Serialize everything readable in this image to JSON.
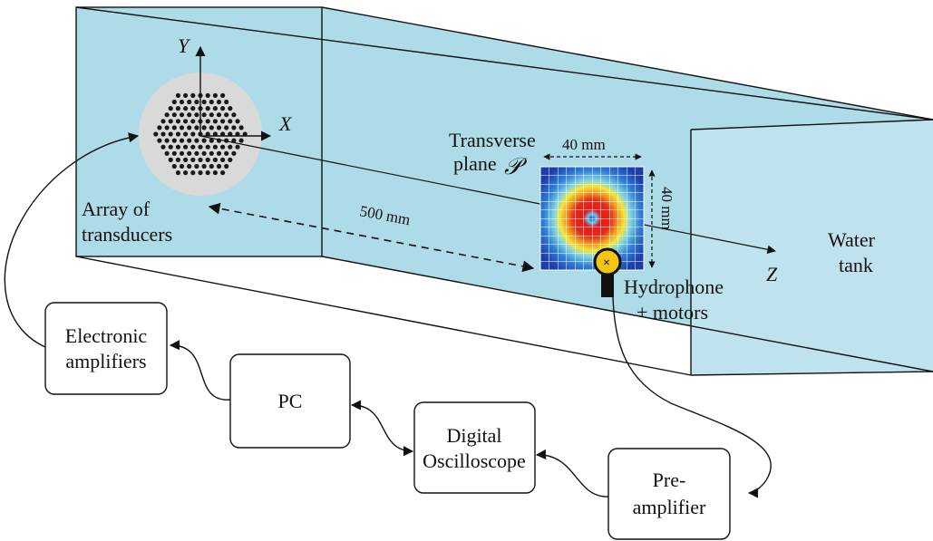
{
  "colors": {
    "water": "#bfe3ee",
    "water_back": "#aedbe8",
    "array_disc": "#d9d9d9",
    "dots": "#1a1a1a",
    "hydrophone": "#f5c40f"
  },
  "labels": {
    "axis_y": "Y",
    "axis_x": "X",
    "axis_z": "Z",
    "array_line1": "Array of",
    "array_line2": "transducers",
    "transverse_line1": "Transverse",
    "transverse_line2": "plane",
    "plane_symbol": "𝒫",
    "width_mm": "40 mm",
    "height_mm": "40 mm",
    "distance": "500 mm",
    "water_line1": "Water",
    "water_line2": "tank",
    "hydro_line1": "Hydrophone",
    "hydro_line2": "+ motors",
    "hydro_mark": "×"
  },
  "blocks": {
    "amplifiers": [
      "Electronic",
      "amplifiers"
    ],
    "pc": [
      "PC"
    ],
    "oscilloscope": [
      "Digital",
      "Oscilloscope"
    ],
    "preamp": [
      "Pre-",
      "amplifier"
    ]
  },
  "icons": {
    "array": "transducer-array-icon",
    "heatmap": "pressure-field-heatmap",
    "hydrophone": "hydrophone-icon"
  }
}
